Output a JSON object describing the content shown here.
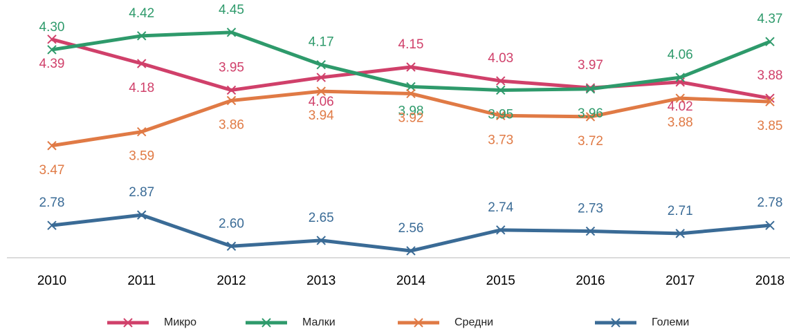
{
  "chart_data": {
    "type": "line",
    "categories": [
      "2010",
      "2011",
      "2012",
      "2013",
      "2014",
      "2015",
      "2016",
      "2017",
      "2018"
    ],
    "series": [
      {
        "name": "Микро",
        "color": "#d0406a",
        "values": [
          4.39,
          4.18,
          3.95,
          4.06,
          4.15,
          4.03,
          3.97,
          4.02,
          3.88
        ]
      },
      {
        "name": "Малки",
        "color": "#2e9a6b",
        "values": [
          4.3,
          4.42,
          4.45,
          4.17,
          3.98,
          3.95,
          3.96,
          4.06,
          4.37
        ]
      },
      {
        "name": "Средни",
        "color": "#e07a45",
        "values": [
          3.47,
          3.59,
          3.86,
          3.94,
          3.92,
          3.73,
          3.72,
          3.88,
          3.85
        ]
      },
      {
        "name": "Големи",
        "color": "#3a6b96",
        "values": [
          2.78,
          2.87,
          2.6,
          2.65,
          2.56,
          2.74,
          2.73,
          2.71,
          2.78
        ]
      }
    ],
    "value_labels": [
      [
        "4.39",
        "4.18",
        "3.95",
        "4.06",
        "4.15",
        "4.03",
        "3.97",
        "4.02",
        "3.88"
      ],
      [
        "4.30",
        "4.42",
        "4.45",
        "4.17",
        "3.98",
        "3.95",
        "3.96",
        "4.06",
        "4.37"
      ],
      [
        "3.47",
        "3.59",
        "3.86",
        "3.94",
        "3.92",
        "3.73",
        "3.72",
        "3.88",
        "3.85"
      ],
      [
        "2.78",
        "2.87",
        "2.60",
        "2.65",
        "2.56",
        "2.74",
        "2.73",
        "2.71",
        "2.78"
      ]
    ],
    "ylim": [
      2.5,
      4.7
    ],
    "marker": "x"
  }
}
